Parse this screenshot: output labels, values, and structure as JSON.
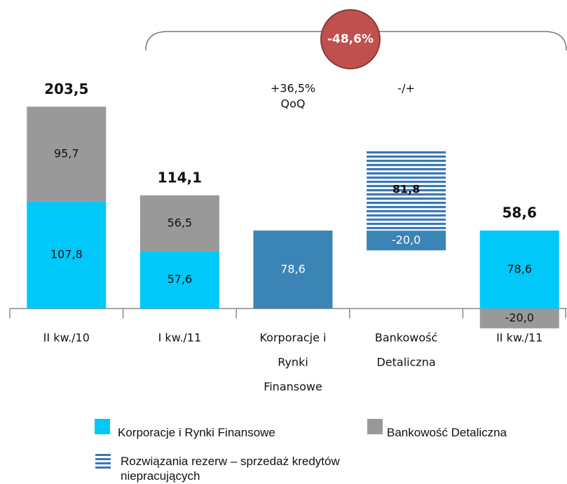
{
  "chart_data": {
    "type": "waterfall",
    "categories": [
      [
        "II kw./10"
      ],
      [
        "I kw./11"
      ],
      [
        "Korporacje i",
        "Rynki",
        "Finansowe"
      ],
      [
        "Bankowość",
        "Detaliczna"
      ],
      [
        "II kw./11"
      ]
    ],
    "series": [
      {
        "name": "Korporacje i Rynki Finansowe",
        "color": "#00c8f8",
        "label_color": "#111111",
        "values": [
          107.8,
          57.6,
          null,
          null,
          78.6
        ],
        "value_labels": [
          "107,8",
          "57,6",
          null,
          null,
          "78,6"
        ]
      },
      {
        "name": "Bankowość Detaliczna",
        "color": "#999999",
        "label_color": "#111111",
        "values": [
          95.7,
          56.5,
          null,
          null,
          -20.0
        ],
        "value_labels": [
          "95,7",
          "56,5",
          null,
          null,
          "-20,0"
        ]
      },
      {
        "color": "#3a85b5",
        "label_color": "#ffffff",
        "values": [
          null,
          null,
          78.6,
          -20.0,
          null
        ],
        "value_labels": [
          null,
          null,
          "78,6",
          "-20,0",
          null
        ]
      },
      {
        "name": "Rozwiązania rezerw – sprzedaż kredytów niepracujących",
        "color": "#3a78b8",
        "pattern": "stripes",
        "label_color": "#111111",
        "values": [
          null,
          null,
          null,
          81.8,
          null
        ],
        "value_labels": [
          null,
          null,
          null,
          "81,8",
          null
        ]
      }
    ],
    "totals": [
      203.5,
      114.1,
      null,
      null,
      58.6
    ],
    "total_labels": [
      "203,5",
      "114,1",
      null,
      null,
      "58,6"
    ],
    "annotations": [
      [
        "+36,5%",
        "QoQ"
      ],
      [
        "-/+"
      ]
    ],
    "change_label": "-48,6%",
    "ylim": [
      -35,
      215
    ]
  }
}
